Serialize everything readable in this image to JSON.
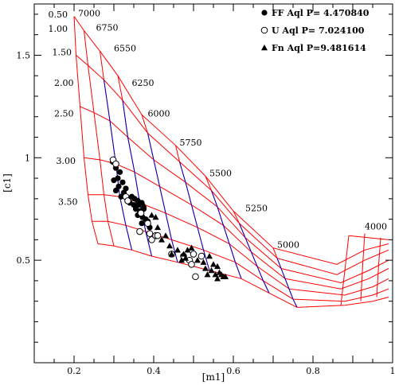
{
  "chart_data": {
    "type": "scatter",
    "xlabel": "[m1]",
    "ylabel": "[c1]",
    "xlim": [
      0.1,
      1.0
    ],
    "ylim": [
      0.0,
      1.75
    ],
    "xticks": [
      {
        "value": 0.2,
        "label": "0.2"
      },
      {
        "value": 0.4,
        "label": "0.4"
      },
      {
        "value": 0.6,
        "label": "0.6"
      },
      {
        "value": 0.8,
        "label": "0.8"
      },
      {
        "value": 1.0,
        "label": "1"
      }
    ],
    "yticks": [
      {
        "value": 0.5,
        "label": "0.5"
      },
      {
        "value": 1.0,
        "label": "1"
      },
      {
        "value": 1.5,
        "label": "1.5"
      }
    ],
    "legend": {
      "position": "top-right",
      "entries": [
        {
          "marker": "filled-circle",
          "label": "FF Aql P= 4.470840"
        },
        {
          "marker": "open-circle",
          "label": "U Aql P= 7.024100"
        },
        {
          "marker": "filled-triangle",
          "label": "Fn Aql  P=9.481614"
        }
      ]
    },
    "grid": {
      "temperature_color": "#ff0000",
      "gravity_color": "#0000cc",
      "temperature_labels": [
        {
          "label": "7000",
          "x": 0.21,
          "y": 1.69
        },
        {
          "label": "6750",
          "x": 0.255,
          "y": 1.62
        },
        {
          "label": "6550",
          "x": 0.3,
          "y": 1.52
        },
        {
          "label": "6250",
          "x": 0.345,
          "y": 1.35
        },
        {
          "label": "6000",
          "x": 0.385,
          "y": 1.2
        },
        {
          "label": "5750",
          "x": 0.465,
          "y": 1.06
        },
        {
          "label": "5500",
          "x": 0.54,
          "y": 0.91
        },
        {
          "label": "5250",
          "x": 0.63,
          "y": 0.74
        },
        {
          "label": "5000",
          "x": 0.71,
          "y": 0.56
        },
        {
          "label": "4000",
          "x": 0.93,
          "y": 0.65
        }
      ],
      "gravity_labels": [
        {
          "label": "0.50",
          "x": 0.135,
          "y": 1.685
        },
        {
          "label": "1.00",
          "x": 0.135,
          "y": 1.615
        },
        {
          "label": "1.50",
          "x": 0.145,
          "y": 1.5
        },
        {
          "label": "2.00",
          "x": 0.15,
          "y": 1.35
        },
        {
          "label": "2.50",
          "x": 0.15,
          "y": 1.2
        },
        {
          "label": "3.00",
          "x": 0.155,
          "y": 0.97
        },
        {
          "label": "3.50",
          "x": 0.16,
          "y": 0.77
        }
      ]
    },
    "series": [
      {
        "name": "FF Aql P= 4.470840",
        "marker": "filled-circle",
        "points": [
          [
            0.297,
            0.98
          ],
          [
            0.305,
            0.95
          ],
          [
            0.315,
            0.93
          ],
          [
            0.31,
            0.9
          ],
          [
            0.322,
            0.88
          ],
          [
            0.3,
            0.89
          ],
          [
            0.312,
            0.86
          ],
          [
            0.33,
            0.85
          ],
          [
            0.325,
            0.83
          ],
          [
            0.305,
            0.84
          ],
          [
            0.318,
            0.81
          ],
          [
            0.335,
            0.8
          ],
          [
            0.345,
            0.81
          ],
          [
            0.352,
            0.8
          ],
          [
            0.36,
            0.79
          ],
          [
            0.34,
            0.78
          ],
          [
            0.35,
            0.77
          ],
          [
            0.362,
            0.77
          ],
          [
            0.37,
            0.78
          ],
          [
            0.355,
            0.75
          ],
          [
            0.365,
            0.74
          ],
          [
            0.375,
            0.75
          ],
          [
            0.36,
            0.72
          ],
          [
            0.372,
            0.71
          ],
          [
            0.38,
            0.7
          ],
          [
            0.37,
            0.68
          ],
          [
            0.385,
            0.69
          ],
          [
            0.39,
            0.66
          ]
        ]
      },
      {
        "name": "U Aql P= 7.024100",
        "marker": "open-circle",
        "points": [
          [
            0.298,
            0.99
          ],
          [
            0.305,
            0.97
          ],
          [
            0.33,
            0.81
          ],
          [
            0.335,
            0.79
          ],
          [
            0.368,
            0.73
          ],
          [
            0.385,
            0.68
          ],
          [
            0.39,
            0.63
          ],
          [
            0.365,
            0.64
          ],
          [
            0.395,
            0.6
          ],
          [
            0.405,
            0.62
          ],
          [
            0.41,
            0.62
          ],
          [
            0.445,
            0.53
          ],
          [
            0.475,
            0.52
          ],
          [
            0.49,
            0.5
          ],
          [
            0.495,
            0.48
          ],
          [
            0.5,
            0.53
          ],
          [
            0.505,
            0.42
          ],
          [
            0.52,
            0.52
          ]
        ]
      },
      {
        "name": "Fn Aql  P=9.481614",
        "marker": "filled-triangle",
        "points": [
          [
            0.375,
            0.77
          ],
          [
            0.395,
            0.72
          ],
          [
            0.405,
            0.71
          ],
          [
            0.41,
            0.66
          ],
          [
            0.43,
            0.62
          ],
          [
            0.42,
            0.6
          ],
          [
            0.44,
            0.57
          ],
          [
            0.445,
            0.53
          ],
          [
            0.46,
            0.55
          ],
          [
            0.475,
            0.53
          ],
          [
            0.485,
            0.55
          ],
          [
            0.48,
            0.51
          ],
          [
            0.47,
            0.5
          ],
          [
            0.495,
            0.56
          ],
          [
            0.51,
            0.5
          ],
          [
            0.525,
            0.49
          ],
          [
            0.53,
            0.46
          ],
          [
            0.54,
            0.52
          ],
          [
            0.535,
            0.43
          ],
          [
            0.545,
            0.45
          ],
          [
            0.55,
            0.48
          ],
          [
            0.56,
            0.47
          ],
          [
            0.565,
            0.44
          ],
          [
            0.57,
            0.43
          ],
          [
            0.575,
            0.42
          ],
          [
            0.555,
            0.43
          ],
          [
            0.56,
            0.41
          ],
          [
            0.58,
            0.42
          ]
        ]
      }
    ]
  }
}
